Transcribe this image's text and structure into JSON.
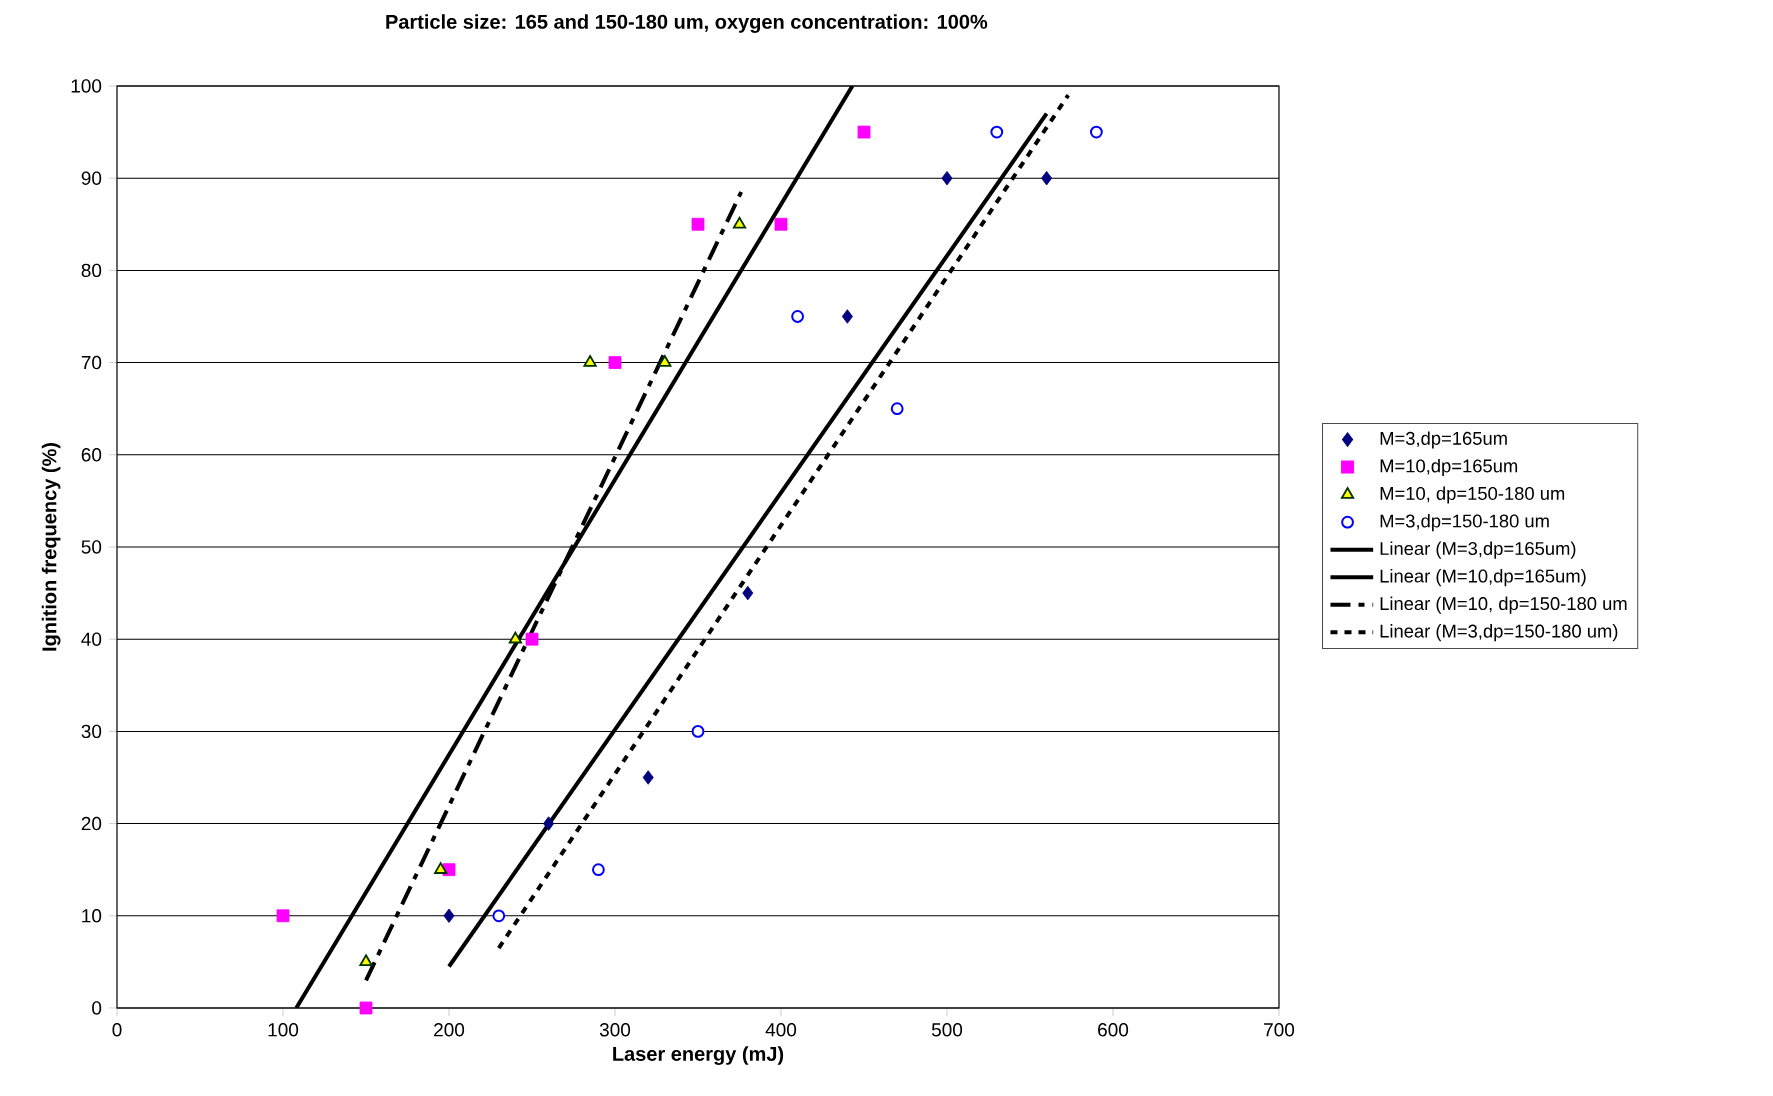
{
  "chart_data": {
    "type": "scatter",
    "title": "Particle size: 165 and 150-180 um, oxygen concentration: 100%",
    "xlabel": "Laser energy (mJ)",
    "ylabel": "Ignition frequency  (%)",
    "xlim": [
      0,
      700
    ],
    "ylim": [
      0,
      100
    ],
    "xticks": [
      0,
      100,
      200,
      300,
      400,
      500,
      600,
      700
    ],
    "yticks": [
      0,
      10,
      20,
      30,
      40,
      50,
      60,
      70,
      80,
      90,
      100
    ],
    "grid": "y",
    "legend": "right",
    "series": [
      {
        "name": "M=3,dp=165um",
        "marker": "diamond",
        "color": "#000080",
        "x": [
          200,
          260,
          320,
          380,
          440,
          500,
          560
        ],
        "values": [
          10,
          20,
          25,
          45,
          75,
          90,
          90
        ]
      },
      {
        "name": "M=10,dp=165um",
        "marker": "square",
        "color": "#ff00ff",
        "x": [
          100,
          150,
          200,
          250,
          300,
          350,
          400,
          450
        ],
        "values": [
          10,
          0,
          15,
          40,
          70,
          85,
          85,
          95
        ]
      },
      {
        "name": "M=10, dp=150-180 um",
        "marker": "triangle",
        "color": "#ffff00",
        "x": [
          150,
          195,
          240,
          285,
          330,
          375
        ],
        "values": [
          5,
          15,
          40,
          70,
          70,
          85
        ]
      },
      {
        "name": "M=3,dp=150-180 um",
        "marker": "circle",
        "color": "#0000ff",
        "x": [
          230,
          290,
          350,
          410,
          470,
          530,
          590
        ],
        "values": [
          10,
          15,
          30,
          75,
          65,
          95,
          95
        ]
      },
      {
        "name": "Linear (M=3,dp=165um)",
        "type": "line",
        "line_style": "solid",
        "color": "#000000",
        "x": [
          200,
          560
        ],
        "values": [
          4.5,
          97
        ]
      },
      {
        "name": "Linear (M=10,dp=165um)",
        "type": "line",
        "line_style": "solid",
        "color": "#000000",
        "x": [
          108,
          443
        ],
        "values": [
          0,
          100
        ]
      },
      {
        "name": "Linear (M=10, dp=150-180 um",
        "type": "line",
        "line_style": "dashed",
        "color": "#000000",
        "x": [
          150,
          376
        ],
        "values": [
          3,
          88.5
        ]
      },
      {
        "name": "Linear (M=3,dp=150-180 um)",
        "type": "line",
        "line_style": "dotted",
        "color": "#000000",
        "x": [
          230,
          573
        ],
        "values": [
          6.5,
          99
        ]
      }
    ]
  }
}
